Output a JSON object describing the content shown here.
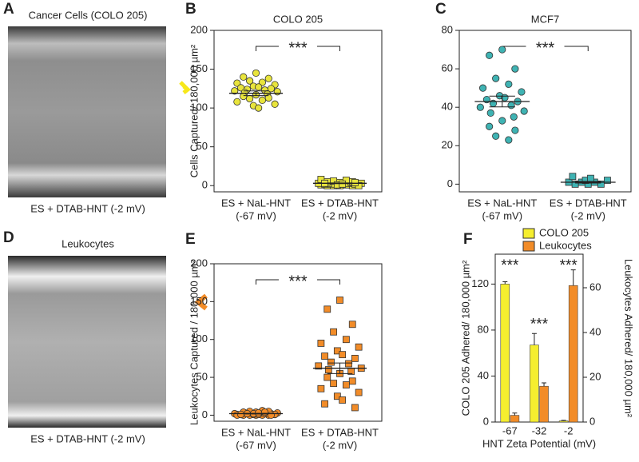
{
  "images": [
    {
      "letter": "A",
      "title": "Cancer Cells (COLO 205)",
      "caption": "ES + DTAB-HNT (-2 mV)"
    },
    {
      "letter": "D",
      "title": "Leukocytes",
      "caption": "ES + DTAB-HNT (-2 mV)"
    }
  ],
  "chart_data": [
    {
      "type": "dotplot",
      "panel": "B",
      "title": "COLO 205",
      "ylabel": "Cells Captured/ 180,000 µm²",
      "categories": [
        [
          "ES + NaL-HNT",
          "(-67 mV)"
        ],
        [
          "ES + DTAB-HNT",
          "(-2 mV)"
        ]
      ],
      "ylim": [
        -8,
        200
      ],
      "yticks": [
        0,
        50,
        100,
        150,
        200
      ],
      "annotation": "***",
      "groups": [
        {
          "color": "#e8e43c",
          "marker": "circle",
          "values": [
            145,
            140,
            138,
            135,
            133,
            132,
            130,
            128,
            127,
            126,
            125,
            124,
            123,
            122,
            121,
            120,
            118,
            117,
            115,
            113,
            112,
            110,
            108,
            105,
            103,
            100
          ],
          "mean": 119,
          "sem": 3
        },
        {
          "color": "#e8e43c",
          "marker": "square",
          "values": [
            0,
            0,
            0,
            0,
            1,
            1,
            1,
            1,
            2,
            2,
            2,
            2,
            3,
            3,
            3,
            3,
            4,
            4,
            5,
            5,
            6,
            7,
            8,
            0,
            1,
            2,
            3,
            4
          ],
          "mean": 3,
          "sem": 0.5
        }
      ]
    },
    {
      "type": "dotplot",
      "panel": "C",
      "title": "MCF7",
      "categories": [
        [
          "ES + NaL-HNT",
          "(-67 mV)"
        ],
        [
          "ES + DTAB-HNT",
          "(-2 mV)"
        ]
      ],
      "ylim": [
        -4,
        80
      ],
      "yticks": [
        0,
        20,
        40,
        60,
        80
      ],
      "annotation": "***",
      "groups": [
        {
          "color": "#3fb3b3",
          "marker": "circle",
          "values": [
            70,
            67,
            60,
            55,
            52,
            50,
            48,
            46,
            45,
            44,
            43,
            42,
            41,
            40,
            38,
            37,
            35,
            33,
            30,
            28,
            25,
            23
          ],
          "mean": 43,
          "sem": 2.8
        },
        {
          "color": "#3fb3b3",
          "marker": "square",
          "values": [
            0,
            0,
            0,
            1,
            1,
            1,
            2,
            2,
            3,
            4
          ],
          "mean": 1,
          "sem": 0.4
        }
      ]
    },
    {
      "type": "dotplot",
      "panel": "E",
      "ylabel": "Leukocytes Captured / 180,000 µm²",
      "categories": [
        [
          "ES + NaL-HNT",
          "(-67 mV)"
        ],
        [
          "ES + DTAB-HNT",
          "(-2 mV)"
        ]
      ],
      "ylim": [
        -8,
        200
      ],
      "yticks": [
        0,
        50,
        100,
        150,
        200
      ],
      "annotation": "***",
      "groups": [
        {
          "color": "#f28c28",
          "marker": "circle",
          "values": [
            0,
            0,
            0,
            0,
            0,
            1,
            1,
            1,
            1,
            1,
            2,
            2,
            2,
            2,
            3,
            3,
            3,
            4,
            4,
            5,
            5,
            6,
            0,
            1,
            2,
            3,
            1,
            0,
            2,
            4
          ],
          "mean": 2,
          "sem": 0.4
        },
        {
          "color": "#f28c28",
          "marker": "square",
          "values": [
            152,
            140,
            120,
            110,
            100,
            95,
            90,
            85,
            80,
            78,
            75,
            70,
            68,
            65,
            62,
            60,
            58,
            55,
            50,
            45,
            42,
            40,
            35,
            30,
            25,
            20,
            15,
            10
          ],
          "mean": 62,
          "sem": 7
        }
      ]
    },
    {
      "type": "bar",
      "panel": "F",
      "ylabel": "COLO 205 Adhered/ 180,000 µm²",
      "y2label": "Leukocytes Adhered/ 180,000 µm²",
      "xlabel": "HNT Zeta Potential (mV)",
      "categories": [
        "-67",
        "-32",
        "-2"
      ],
      "ylim": [
        0,
        146
      ],
      "yticks": [
        0,
        40,
        80,
        120
      ],
      "y2lim": [
        0,
        75
      ],
      "y2ticks": [
        0,
        20,
        40,
        60
      ],
      "annotations": [
        "***",
        "***",
        "***"
      ],
      "legend": "top",
      "series": [
        {
          "name": "COLO 205",
          "color": "#f5ee2f",
          "values": [
            120,
            67,
            1
          ],
          "errors": [
            2,
            10,
            0.5
          ]
        },
        {
          "name": "Leukocytes",
          "color": "#f28c28",
          "values": [
            3,
            16,
            61
          ],
          "errors": [
            1,
            1.5,
            7
          ],
          "axis": "y2"
        }
      ]
    }
  ]
}
